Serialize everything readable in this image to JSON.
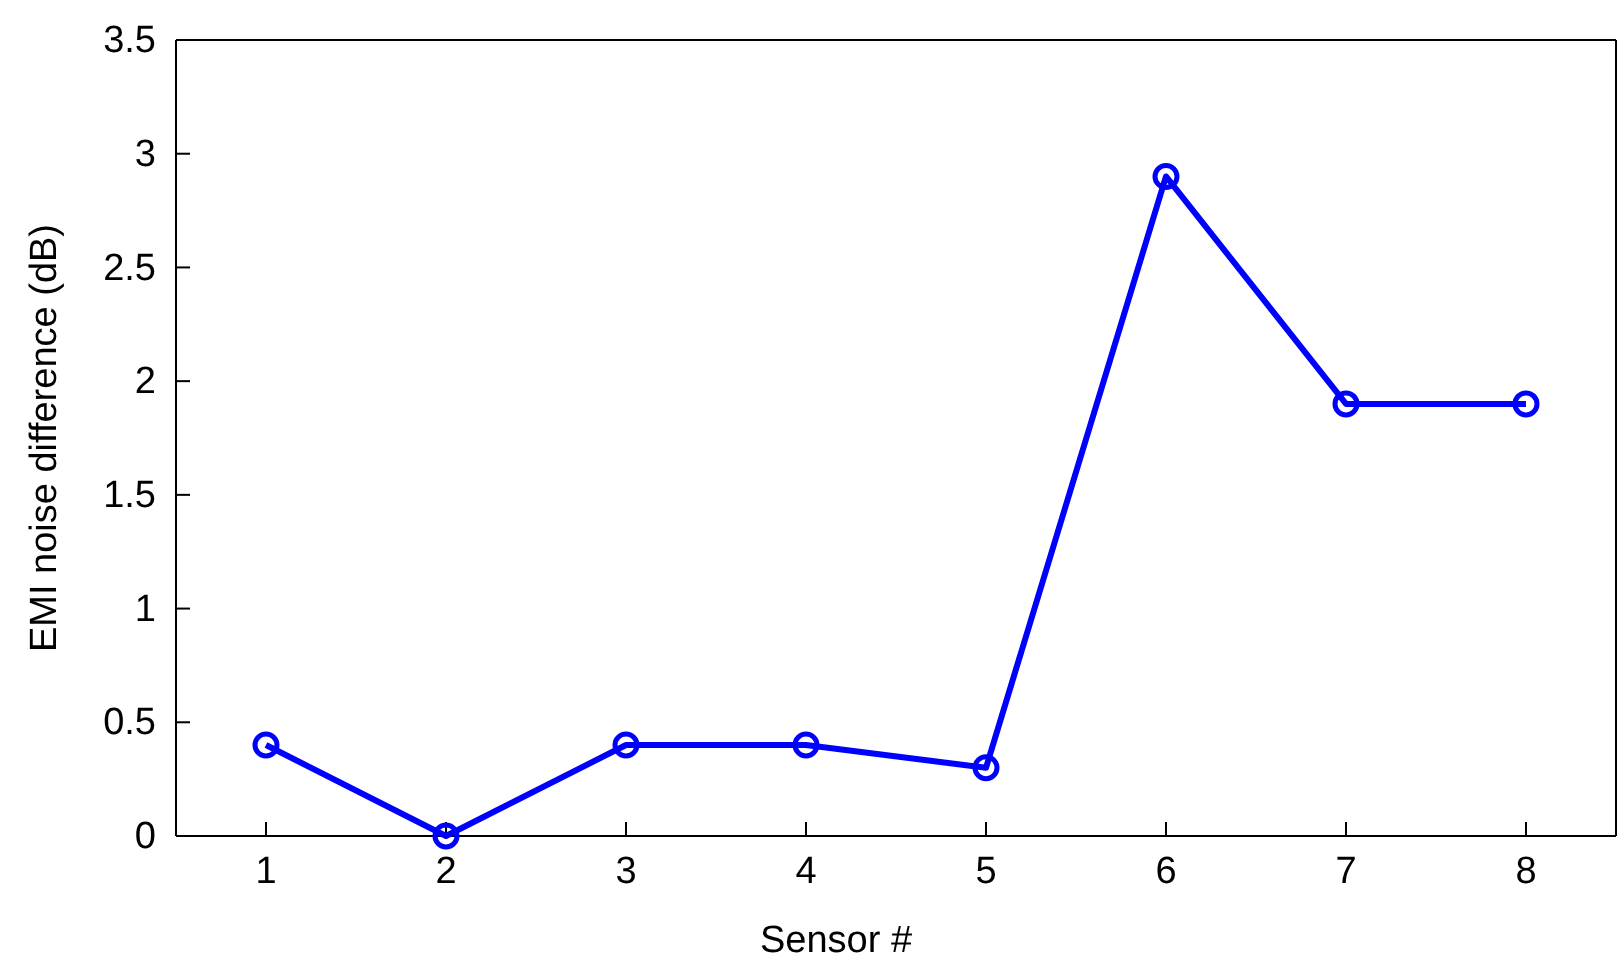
{
  "chart_data": {
    "type": "line",
    "xlabel": "Sensor #",
    "ylabel": "EMI noise difference (dB)",
    "x": [
      1,
      2,
      3,
      4,
      5,
      6,
      7,
      8
    ],
    "series": [
      {
        "color": "#0000ff",
        "values": [
          0.4,
          0,
          0.4,
          0.4,
          0.3,
          2.9,
          1.9,
          1.9
        ]
      }
    ],
    "xlim": [
      0.5,
      8.5
    ],
    "xticks": [
      1,
      2,
      3,
      4,
      5,
      6,
      7,
      8
    ],
    "ylim": [
      0,
      3.5
    ],
    "yticks": [
      0,
      0.5,
      1,
      1.5,
      2,
      2.5,
      3,
      3.5
    ],
    "marker": "circle",
    "line_style": "solid"
  }
}
